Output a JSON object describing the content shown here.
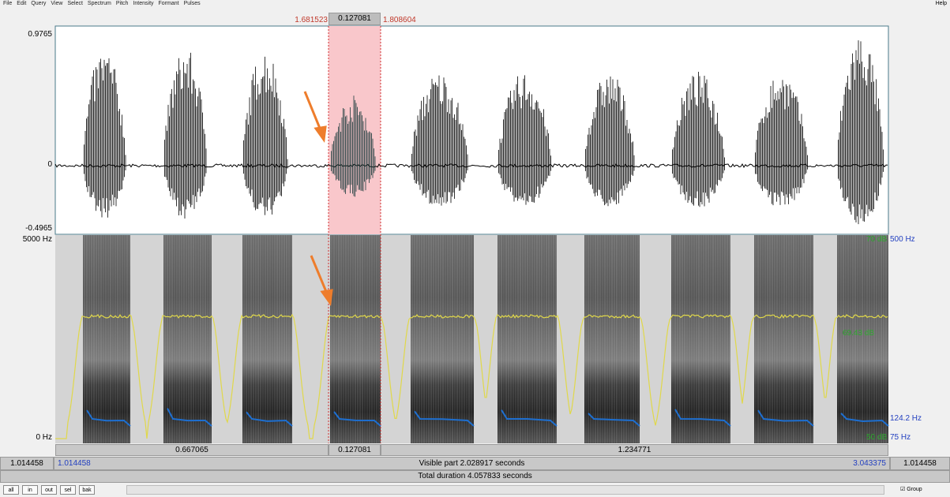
{
  "menu": [
    "File",
    "Edit",
    "Query",
    "View",
    "Select",
    "Spectrum",
    "Pitch",
    "Intensity",
    "Formant",
    "Pulses"
  ],
  "help": "Help",
  "selection": {
    "start": "1.681523",
    "duration": "0.127081",
    "end": "1.808604"
  },
  "waveform": {
    "top": "0.9765",
    "zero": "0",
    "bottom": "-0.4965"
  },
  "spectrogram": {
    "top": "5000 Hz",
    "bottom": "0 Hz",
    "pitch_top": "500 Hz",
    "pitch_value": "124.2 Hz",
    "pitch_bottom": "75 Hz",
    "intensity_top": "70 dB",
    "intensity_value": "69.43 dB",
    "intensity_bottom": "50 dB"
  },
  "segments": [
    "0.667065",
    "0.127081",
    "1.234771"
  ],
  "visible": {
    "left": "1.014458",
    "start": "1.014458",
    "label": "Visible part 2.028917 seconds",
    "end": "3.043375",
    "right": "1.014458"
  },
  "total": "Total duration 4.057833 seconds",
  "buttons": [
    "all",
    "in",
    "out",
    "sel",
    "bak"
  ],
  "group": "Group"
}
